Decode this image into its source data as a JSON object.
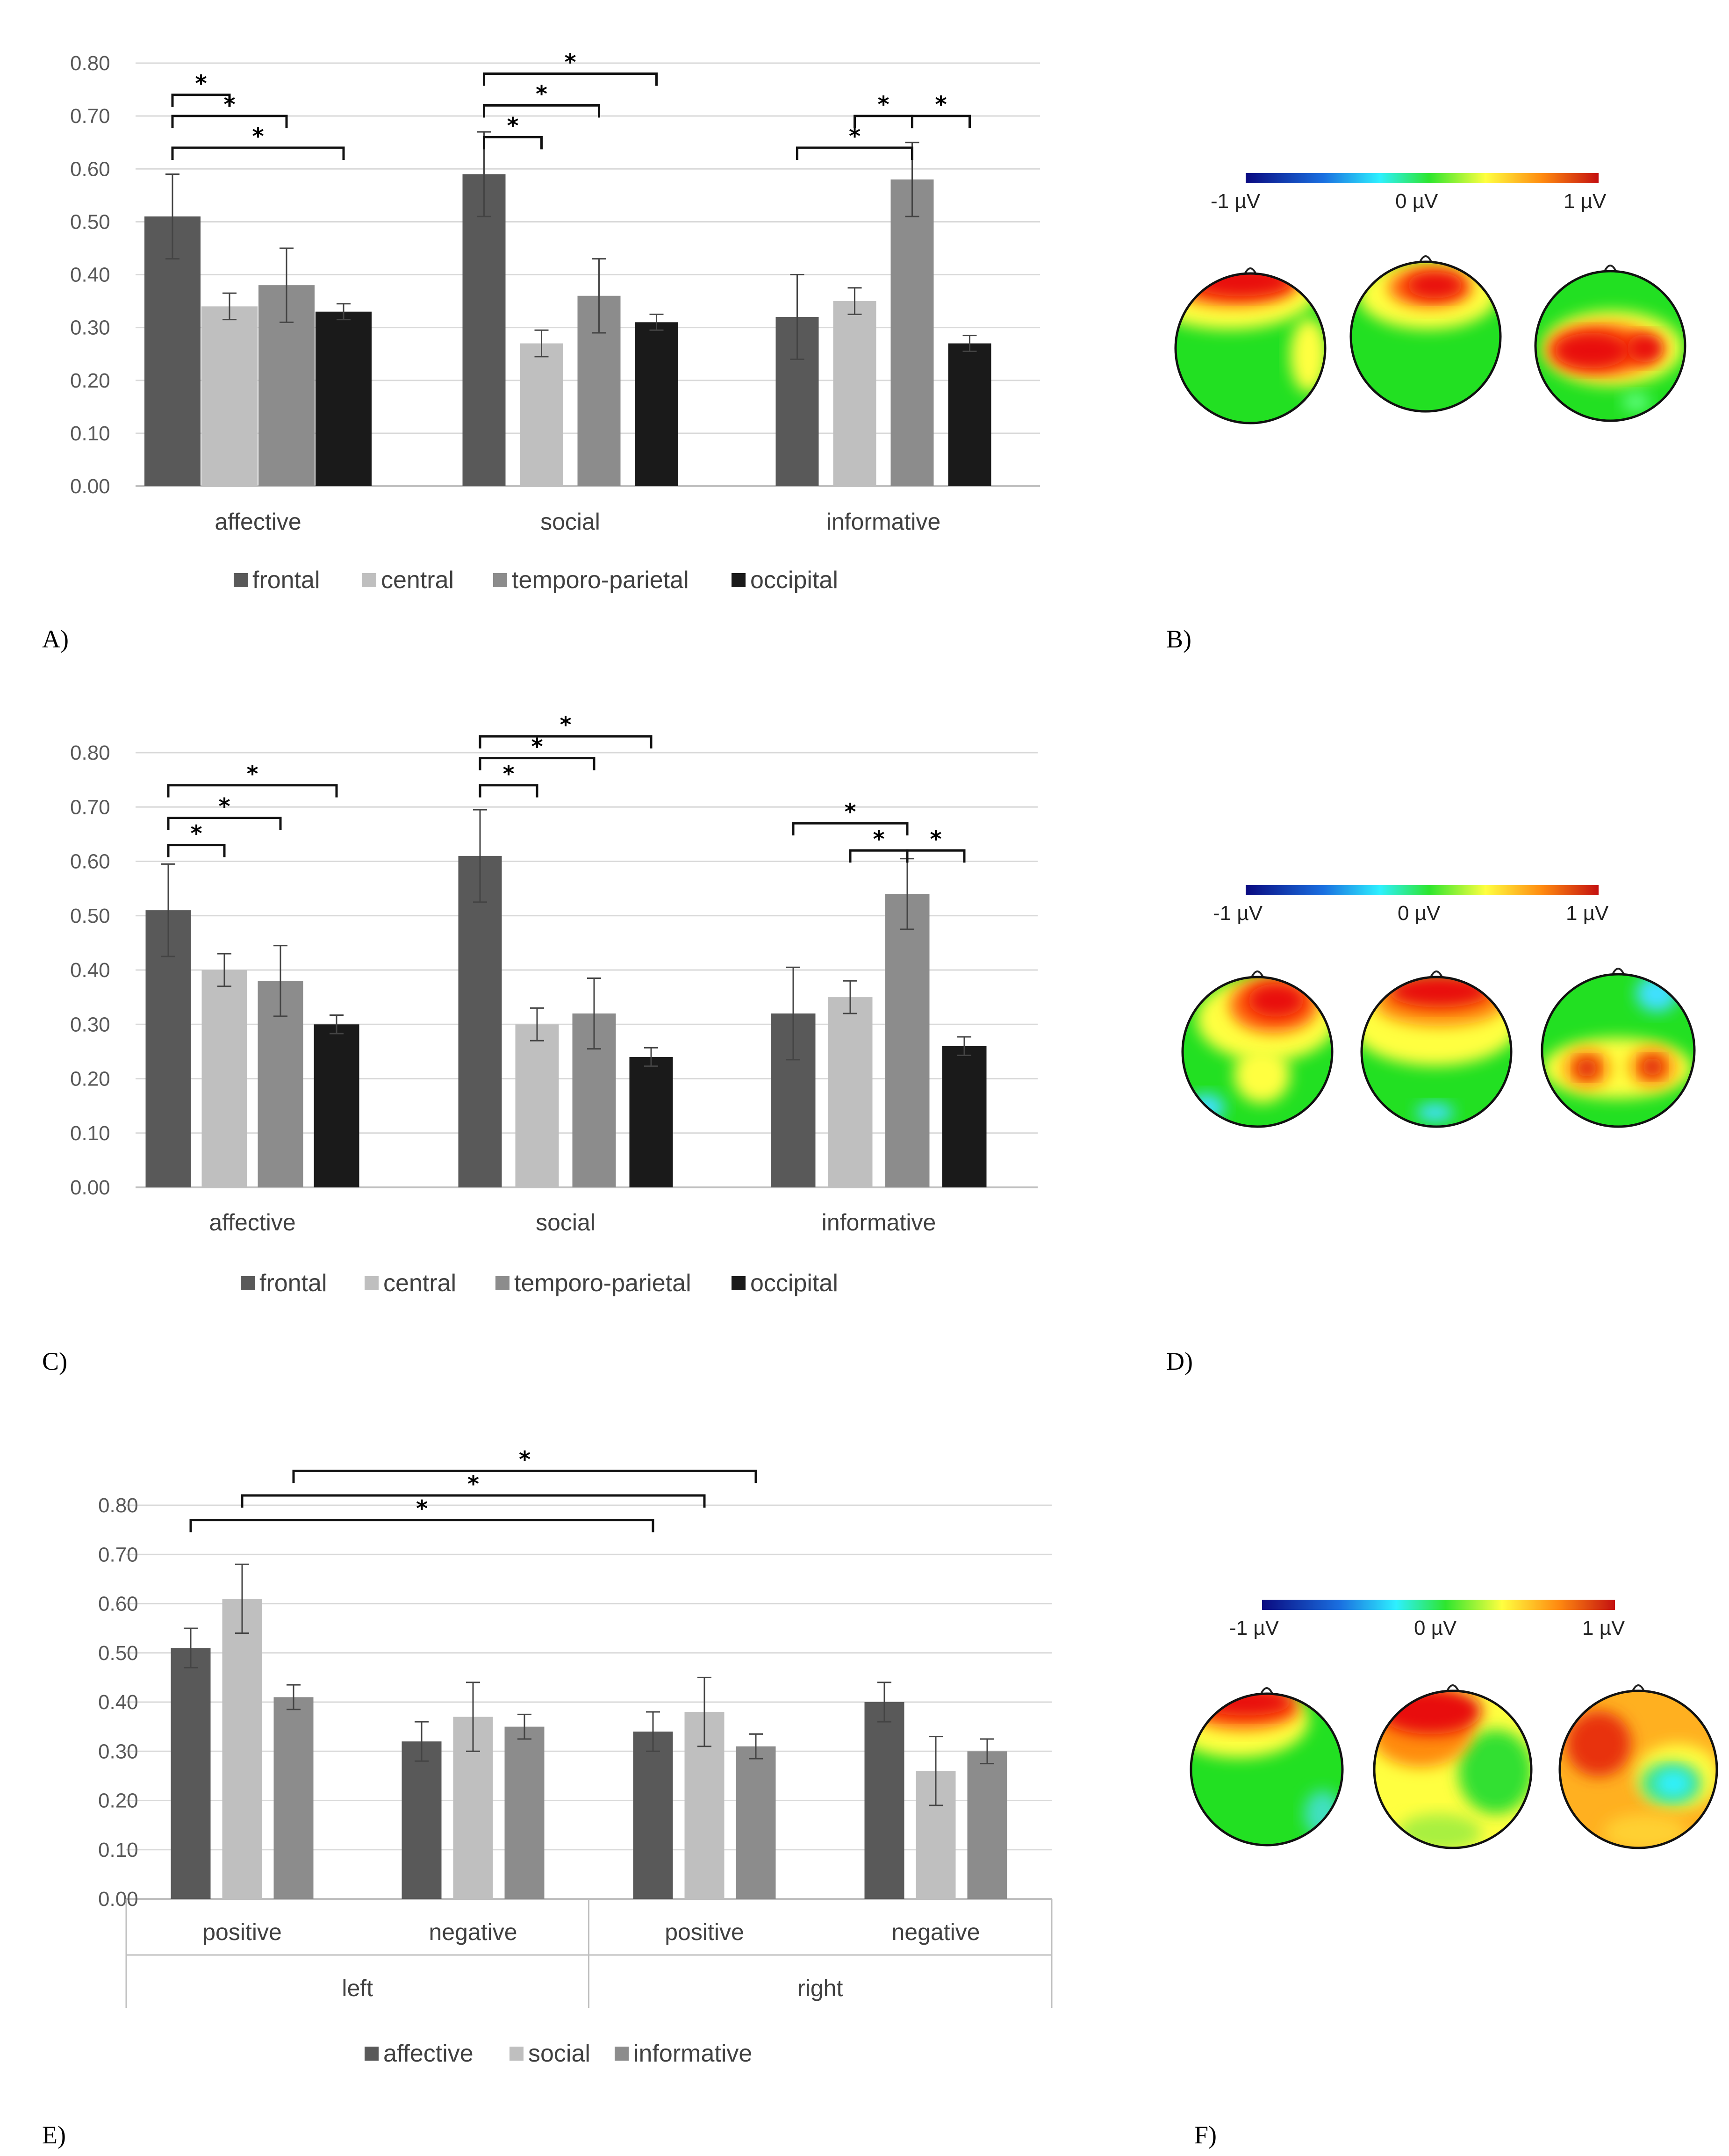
{
  "panel_labels": [
    "A)",
    "B)",
    "C)",
    "D)",
    "E)",
    "F)"
  ],
  "chart_data": [
    {
      "type": "bar",
      "panel": "A)",
      "categories": [
        "affective",
        "social",
        "informative"
      ],
      "series": [
        {
          "name": "frontal",
          "color": "#595959",
          "values": [
            0.51,
            0.59,
            0.32
          ],
          "errors": [
            0.08,
            0.08,
            0.08
          ]
        },
        {
          "name": "central",
          "color": "#bfbfbf",
          "values": [
            0.34,
            0.27,
            0.35
          ],
          "errors": [
            0.025,
            0.025,
            0.025
          ]
        },
        {
          "name": "temporo-parietal",
          "color": "#8c8c8c",
          "values": [
            0.38,
            0.36,
            0.58
          ],
          "errors": [
            0.07,
            0.07,
            0.07
          ]
        },
        {
          "name": "occipital",
          "color": "#1a1a1a",
          "values": [
            0.33,
            0.31,
            0.27
          ],
          "errors": [
            0.015,
            0.015,
            0.015
          ]
        }
      ],
      "ylim": [
        0,
        0.8
      ],
      "yticks": [
        "0.00",
        "0.10",
        "0.20",
        "0.30",
        "0.40",
        "0.50",
        "0.60",
        "0.70",
        "0.80"
      ],
      "significance": [
        {
          "group": 0,
          "from": 0,
          "to": 1,
          "level": 0.74,
          "label": "*"
        },
        {
          "group": 0,
          "from": 0,
          "to": 2,
          "level": 0.7,
          "label": "*"
        },
        {
          "group": 0,
          "from": 0,
          "to": 3,
          "level": 0.64,
          "label": "*"
        },
        {
          "group": 1,
          "from": 0,
          "to": 1,
          "level": 0.66,
          "label": "*"
        },
        {
          "group": 1,
          "from": 0,
          "to": 2,
          "level": 0.72,
          "label": "*"
        },
        {
          "group": 1,
          "from": 0,
          "to": 3,
          "level": 0.78,
          "label": "*"
        },
        {
          "group": 2,
          "from": 0,
          "to": 2,
          "level": 0.64,
          "label": "*"
        },
        {
          "group": 2,
          "from": 1,
          "to": 2,
          "level": 0.7,
          "label": "*"
        },
        {
          "group": 2,
          "from": 2,
          "to": 3,
          "level": 0.7,
          "label": "*"
        }
      ]
    },
    {
      "type": "bar",
      "panel": "C)",
      "categories": [
        "affective",
        "social",
        "informative"
      ],
      "series": [
        {
          "name": "frontal",
          "color": "#595959",
          "values": [
            0.51,
            0.61,
            0.32
          ],
          "errors": [
            0.085,
            0.085,
            0.085
          ]
        },
        {
          "name": "central",
          "color": "#bfbfbf",
          "values": [
            0.4,
            0.3,
            0.35
          ],
          "errors": [
            0.03,
            0.03,
            0.03
          ]
        },
        {
          "name": "temporo-parietal",
          "color": "#8c8c8c",
          "values": [
            0.38,
            0.32,
            0.54
          ],
          "errors": [
            0.065,
            0.065,
            0.065
          ]
        },
        {
          "name": "occipital",
          "color": "#1a1a1a",
          "values": [
            0.3,
            0.24,
            0.26
          ],
          "errors": [
            0.017,
            0.017,
            0.017
          ]
        }
      ],
      "ylim": [
        0,
        0.8
      ],
      "yticks": [
        "0.00",
        "0.10",
        "0.20",
        "0.30",
        "0.40",
        "0.50",
        "0.60",
        "0.70",
        "0.80"
      ],
      "significance": [
        {
          "group": 0,
          "from": 0,
          "to": 1,
          "level": 0.63,
          "label": "*"
        },
        {
          "group": 0,
          "from": 0,
          "to": 2,
          "level": 0.68,
          "label": "*"
        },
        {
          "group": 0,
          "from": 0,
          "to": 3,
          "level": 0.74,
          "label": "*"
        },
        {
          "group": 1,
          "from": 0,
          "to": 1,
          "level": 0.74,
          "label": "*"
        },
        {
          "group": 1,
          "from": 0,
          "to": 2,
          "level": 0.79,
          "label": "*"
        },
        {
          "group": 1,
          "from": 0,
          "to": 3,
          "level": 0.83,
          "label": "*"
        },
        {
          "group": 2,
          "from": 0,
          "to": 2,
          "level": 0.67,
          "label": "*"
        },
        {
          "group": 2,
          "from": 1,
          "to": 2,
          "level": 0.62,
          "label": "*"
        },
        {
          "group": 2,
          "from": 2,
          "to": 3,
          "level": 0.62,
          "label": "*"
        }
      ]
    },
    {
      "type": "bar",
      "panel": "E)",
      "categories": [
        "positive",
        "negative",
        "positive",
        "negative"
      ],
      "outer_categories": [
        "left",
        "right"
      ],
      "series": [
        {
          "name": "affective",
          "color": "#595959",
          "values": [
            0.51,
            0.32,
            0.34,
            0.4
          ],
          "errors": [
            0.04,
            0.04,
            0.04,
            0.04
          ]
        },
        {
          "name": "social",
          "color": "#bfbfbf",
          "values": [
            0.61,
            0.37,
            0.38,
            0.26
          ],
          "errors": [
            0.07,
            0.07,
            0.07,
            0.07
          ]
        },
        {
          "name": "informative",
          "color": "#8c8c8c",
          "values": [
            0.41,
            0.35,
            0.31,
            0.3
          ],
          "errors": [
            0.025,
            0.025,
            0.025,
            0.025
          ]
        }
      ],
      "ylim": [
        0,
        0.8
      ],
      "yticks": [
        "0.00",
        "0.10",
        "0.20",
        "0.30",
        "0.40",
        "0.50",
        "0.60",
        "0.70",
        "0.80"
      ],
      "significance": [
        {
          "from_group": 0,
          "from_series": 0,
          "to_group": 2,
          "to_series": 0,
          "level": 0.77,
          "label": "*"
        },
        {
          "from_group": 0,
          "from_series": 1,
          "to_group": 2,
          "to_series": 1,
          "level": 0.82,
          "label": "*"
        },
        {
          "from_group": 0,
          "from_series": 2,
          "to_group": 2,
          "to_series": 2,
          "level": 0.87,
          "label": "*"
        }
      ]
    }
  ],
  "scalp_maps": {
    "colorbar_labels": [
      "-1  µV",
      "0 µV",
      "1  µV"
    ],
    "colors": {
      "blue": "#0000a0",
      "cyan": "#19e6ff",
      "green": "#1ee61e",
      "yellow": "#ffff32",
      "orange": "#ff9614",
      "red": "#e61414"
    },
    "rows": [
      {
        "panel": "B)",
        "maps": [
          "frontal-left-red",
          "frontal-center-red",
          "temporo-parietal-red"
        ]
      },
      {
        "panel": "D)",
        "maps": [
          "frontal-red-lower-green",
          "frontal-red-central-green",
          "bilateral-parietal-red"
        ]
      },
      {
        "panel": "F)",
        "maps": [
          "left-frontal-red",
          "left-frontal-orange-red",
          "orange-diffuse-cyan-right"
        ]
      }
    ]
  }
}
